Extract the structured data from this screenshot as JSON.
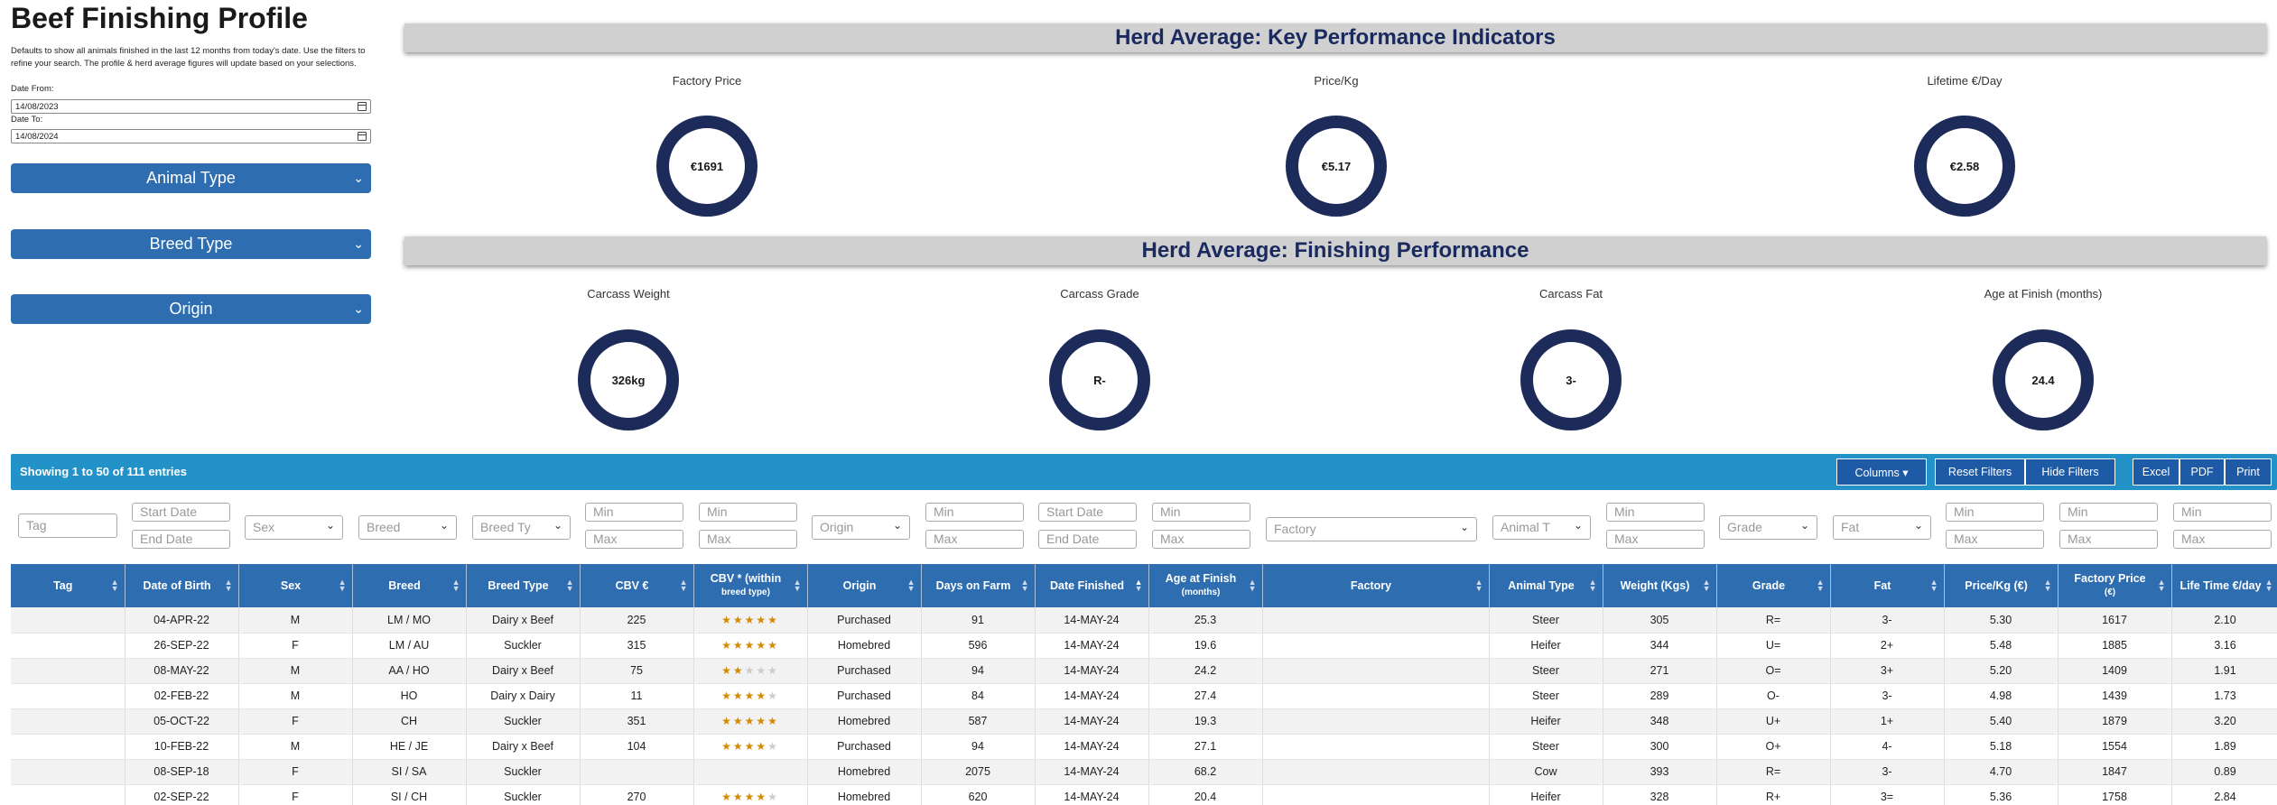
{
  "page": {
    "title": "Beef Finishing Profile",
    "description": "Defaults to show all animals finished in the last 12 months from today's date. Use the filters to refine your search. The profile & herd average figures will update based on your selections."
  },
  "date_filter": {
    "from_label": "Date From:",
    "from_value": "14/08/2023",
    "to_label": "Date To:",
    "to_value": "14/08/2024"
  },
  "sidebar_filters": {
    "animal_type": "Animal Type",
    "breed_type": "Breed Type",
    "origin": "Origin"
  },
  "kpi": {
    "title": "Herd Average: Key Performance Indicators",
    "items": [
      {
        "label": "Factory Price",
        "value": "€1691"
      },
      {
        "label": "Price/Kg",
        "value": "€5.17"
      },
      {
        "label": "Lifetime €/Day",
        "value": "€2.58"
      }
    ]
  },
  "finishing": {
    "title": "Herd Average: Finishing Performance",
    "items": [
      {
        "label": "Carcass Weight",
        "value": "326kg"
      },
      {
        "label": "Carcass Grade",
        "value": "R-"
      },
      {
        "label": "Carcass Fat",
        "value": "3-"
      },
      {
        "label": "Age at Finish (months)",
        "value": "24.4"
      }
    ]
  },
  "table_toolbar": {
    "showing": "Showing 1 to 50 of 111 entries",
    "columns_btn": "Columns ▾",
    "reset_btn": "Reset Filters",
    "hide_btn": "Hide Filters",
    "excel_btn": "Excel",
    "pdf_btn": "PDF",
    "print_btn": "Print"
  },
  "column_filters": {
    "tag": "Tag",
    "start_date": "Start Date",
    "end_date": "End Date",
    "sex": "Sex",
    "breed": "Breed",
    "breed_type": "Breed Ty",
    "min": "Min",
    "max": "Max",
    "origin": "Origin",
    "factory": "Factory",
    "animal_type": "Animal T",
    "grade": "Grade",
    "fat": "Fat"
  },
  "table": {
    "columns": [
      {
        "label": "Tag",
        "sub": ""
      },
      {
        "label": "Date of Birth",
        "sub": ""
      },
      {
        "label": "Sex",
        "sub": ""
      },
      {
        "label": "Breed",
        "sub": ""
      },
      {
        "label": "Breed Type",
        "sub": ""
      },
      {
        "label": "CBV €",
        "sub": ""
      },
      {
        "label": "CBV * (within",
        "sub": "breed type)"
      },
      {
        "label": "Origin",
        "sub": ""
      },
      {
        "label": "Days on Farm",
        "sub": ""
      },
      {
        "label": "Date Finished",
        "sub": ""
      },
      {
        "label": "Age at Finish",
        "sub": "(months)"
      },
      {
        "label": "Factory",
        "sub": ""
      },
      {
        "label": "Animal Type",
        "sub": ""
      },
      {
        "label": "Weight (Kgs)",
        "sub": ""
      },
      {
        "label": "Grade",
        "sub": ""
      },
      {
        "label": "Fat",
        "sub": ""
      },
      {
        "label": "Price/Kg (€)",
        "sub": ""
      },
      {
        "label": "Factory Price",
        "sub": "(€)"
      },
      {
        "label": "Life Time €/day",
        "sub": ""
      }
    ],
    "rows": [
      {
        "tag": "",
        "dob": "04-APR-22",
        "sex": "M",
        "breed": "LM / MO",
        "breed_type": "Dairy x Beef",
        "cbv": "225",
        "stars": 5,
        "origin": "Purchased",
        "days": "91",
        "finished": "14-MAY-24",
        "age": "25.3",
        "factory": "",
        "animal_type": "Steer",
        "weight": "305",
        "grade": "R=",
        "fat": "3-",
        "price_kg": "5.30",
        "factory_price": "1617",
        "lifetime": "2.10"
      },
      {
        "tag": "",
        "dob": "26-SEP-22",
        "sex": "F",
        "breed": "LM / AU",
        "breed_type": "Suckler",
        "cbv": "315",
        "stars": 5,
        "origin": "Homebred",
        "days": "596",
        "finished": "14-MAY-24",
        "age": "19.6",
        "factory": "",
        "animal_type": "Heifer",
        "weight": "344",
        "grade": "U=",
        "fat": "2+",
        "price_kg": "5.48",
        "factory_price": "1885",
        "lifetime": "3.16"
      },
      {
        "tag": "",
        "dob": "08-MAY-22",
        "sex": "M",
        "breed": "AA / HO",
        "breed_type": "Dairy x Beef",
        "cbv": "75",
        "stars": 2,
        "origin": "Purchased",
        "days": "94",
        "finished": "14-MAY-24",
        "age": "24.2",
        "factory": "",
        "animal_type": "Steer",
        "weight": "271",
        "grade": "O=",
        "fat": "3+",
        "price_kg": "5.20",
        "factory_price": "1409",
        "lifetime": "1.91"
      },
      {
        "tag": "",
        "dob": "02-FEB-22",
        "sex": "M",
        "breed": "HO",
        "breed_type": "Dairy x Dairy",
        "cbv": "11",
        "stars": 4,
        "origin": "Purchased",
        "days": "84",
        "finished": "14-MAY-24",
        "age": "27.4",
        "factory": "",
        "animal_type": "Steer",
        "weight": "289",
        "grade": "O-",
        "fat": "3-",
        "price_kg": "4.98",
        "factory_price": "1439",
        "lifetime": "1.73"
      },
      {
        "tag": "",
        "dob": "05-OCT-22",
        "sex": "F",
        "breed": "CH",
        "breed_type": "Suckler",
        "cbv": "351",
        "stars": 5,
        "origin": "Homebred",
        "days": "587",
        "finished": "14-MAY-24",
        "age": "19.3",
        "factory": "",
        "animal_type": "Heifer",
        "weight": "348",
        "grade": "U+",
        "fat": "1+",
        "price_kg": "5.40",
        "factory_price": "1879",
        "lifetime": "3.20"
      },
      {
        "tag": "",
        "dob": "10-FEB-22",
        "sex": "M",
        "breed": "HE / JE",
        "breed_type": "Dairy x Beef",
        "cbv": "104",
        "stars": 4,
        "origin": "Purchased",
        "days": "94",
        "finished": "14-MAY-24",
        "age": "27.1",
        "factory": "",
        "animal_type": "Steer",
        "weight": "300",
        "grade": "O+",
        "fat": "4-",
        "price_kg": "5.18",
        "factory_price": "1554",
        "lifetime": "1.89"
      },
      {
        "tag": "",
        "dob": "08-SEP-18",
        "sex": "F",
        "breed": "SI / SA",
        "breed_type": "Suckler",
        "cbv": "",
        "stars": 0,
        "origin": "Homebred",
        "days": "2075",
        "finished": "14-MAY-24",
        "age": "68.2",
        "factory": "",
        "animal_type": "Cow",
        "weight": "393",
        "grade": "R=",
        "fat": "3-",
        "price_kg": "4.70",
        "factory_price": "1847",
        "lifetime": "0.89"
      },
      {
        "tag": "",
        "dob": "02-SEP-22",
        "sex": "F",
        "breed": "SI / CH",
        "breed_type": "Suckler",
        "cbv": "270",
        "stars": 4,
        "origin": "Homebred",
        "days": "620",
        "finished": "14-MAY-24",
        "age": "20.4",
        "factory": "",
        "animal_type": "Heifer",
        "weight": "328",
        "grade": "R+",
        "fat": "3=",
        "price_kg": "5.36",
        "factory_price": "1758",
        "lifetime": "2.84"
      }
    ]
  }
}
